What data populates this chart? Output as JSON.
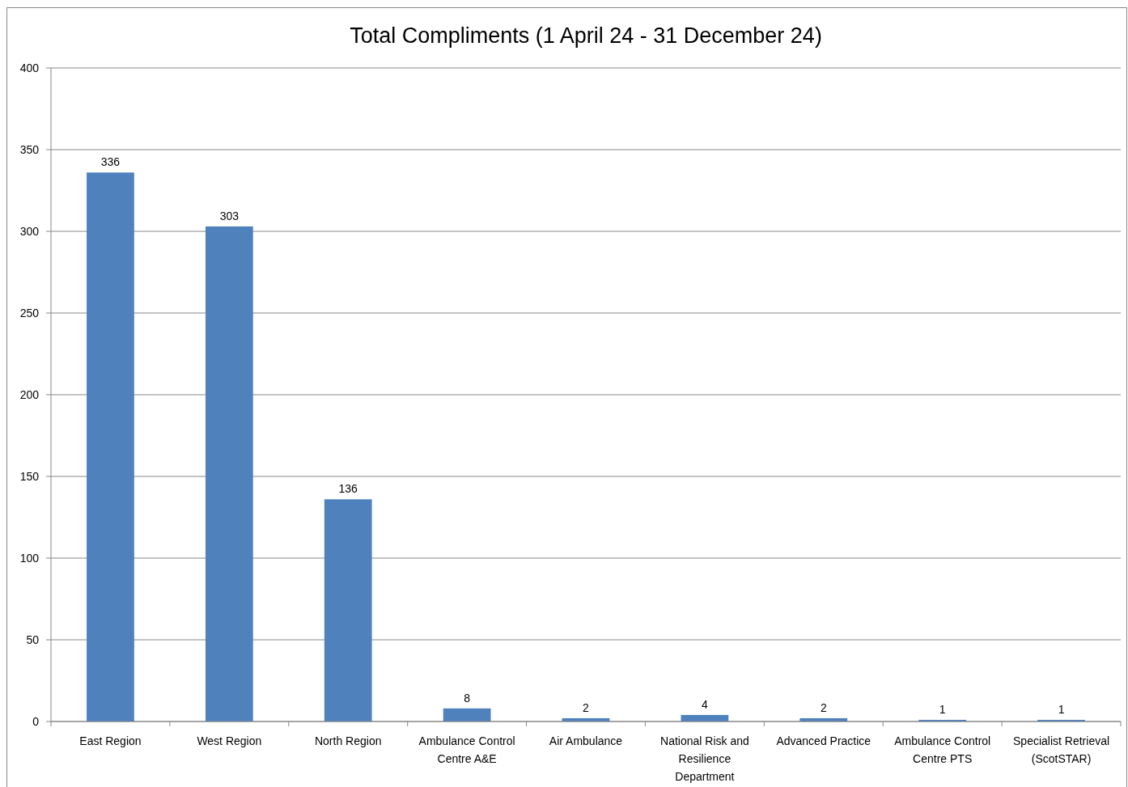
{
  "chart_data": {
    "type": "bar",
    "title": "Total Compliments (1 April 24 - 31 December 24)",
    "categories": [
      "East Region",
      "West Region",
      "North Region",
      "Ambulance Control Centre A&E",
      "Air Ambulance",
      "National Risk and Resilience Department",
      "Advanced Practice",
      "Ambulance Control Centre PTS",
      "Specialist Retrieval (ScotSTAR)"
    ],
    "values": [
      336,
      303,
      136,
      8,
      2,
      4,
      2,
      1,
      1
    ],
    "color": "#4f81bd",
    "ylim": [
      0,
      400
    ],
    "yticks": [
      0,
      50,
      100,
      150,
      200,
      250,
      300,
      350,
      400
    ],
    "grid": "y",
    "data_labels": true
  }
}
